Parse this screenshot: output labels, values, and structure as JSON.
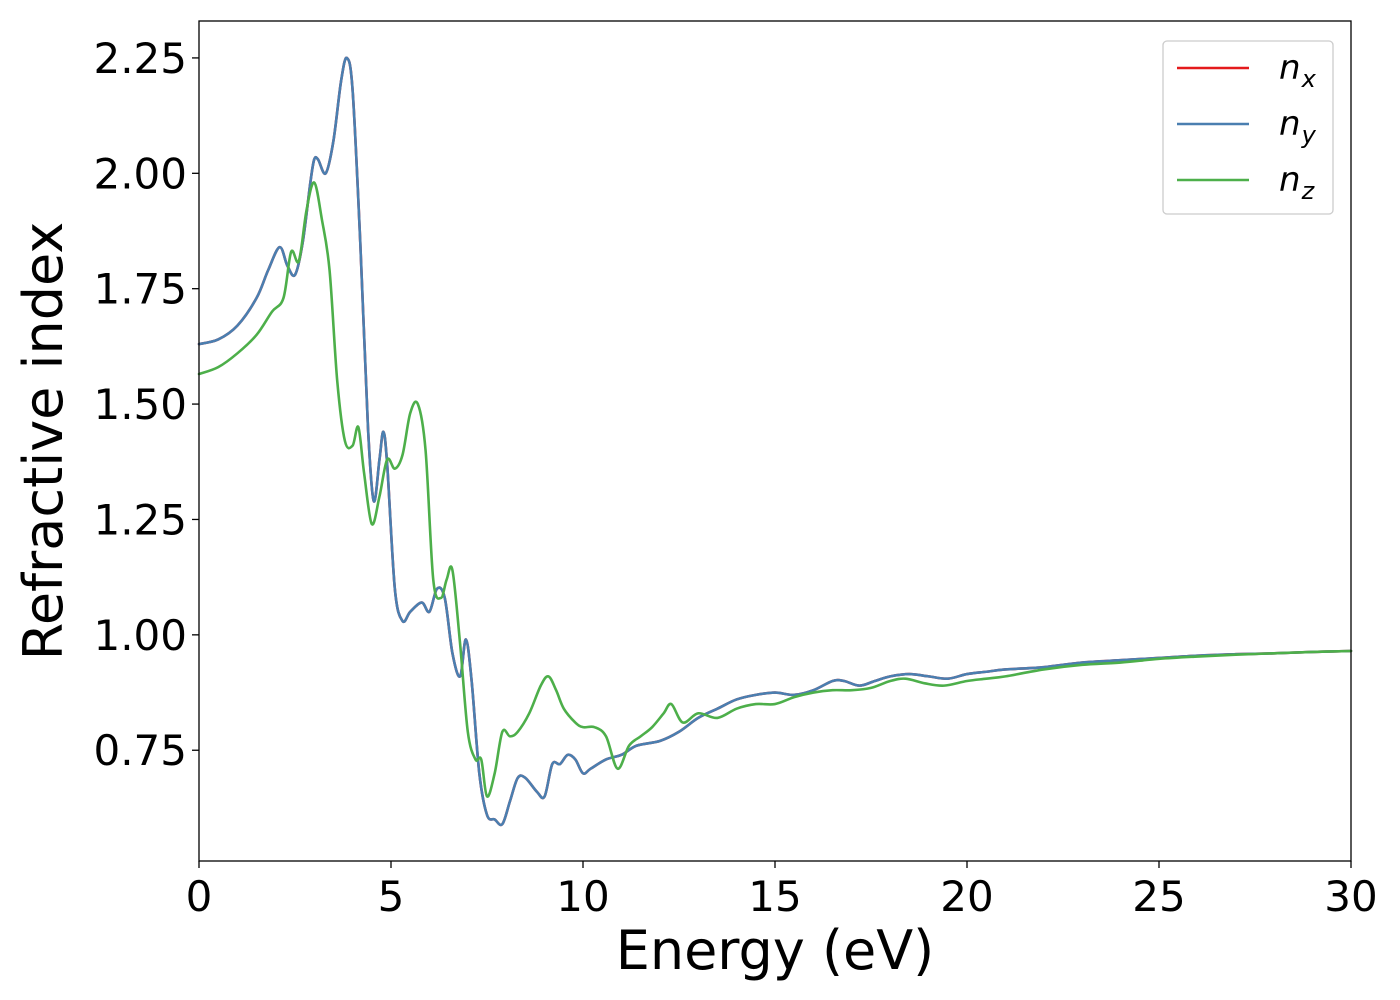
{
  "chart_data": {
    "type": "line",
    "title": "",
    "xlabel": "Energy (eV)",
    "ylabel": "Refractive index",
    "xlim": [
      0,
      30
    ],
    "ylim": [
      0.51,
      2.33
    ],
    "xticks": [
      "0",
      "5",
      "10",
      "15",
      "20",
      "25",
      "30"
    ],
    "xtick_values": [
      0,
      5,
      10,
      15,
      20,
      25,
      30
    ],
    "yticks": [
      "0.75",
      "1.00",
      "1.25",
      "1.50",
      "1.75",
      "2.00",
      "2.25"
    ],
    "ytick_values": [
      0.75,
      1.0,
      1.25,
      1.5,
      1.75,
      2.0,
      2.25
    ],
    "grid": false,
    "legend_position": "top-right",
    "series": [
      {
        "name": "n_x",
        "legend_main": "n",
        "legend_sub": "x",
        "color": "#e41a1c",
        "x": [
          0,
          0.5,
          1.0,
          1.5,
          1.8,
          2.1,
          2.3,
          2.5,
          2.7,
          2.9,
          3.0,
          3.1,
          3.3,
          3.5,
          3.7,
          3.85,
          4.0,
          4.2,
          4.4,
          4.55,
          4.7,
          4.8,
          4.9,
          5.1,
          5.3,
          5.5,
          5.8,
          6.0,
          6.2,
          6.4,
          6.6,
          6.8,
          6.95,
          7.1,
          7.3,
          7.5,
          7.7,
          7.9,
          8.1,
          8.3,
          8.5,
          8.8,
          9.0,
          9.2,
          9.4,
          9.6,
          9.8,
          10.0,
          10.2,
          10.6,
          11.0,
          11.4,
          12.0,
          12.5,
          13.0,
          13.5,
          14.0,
          14.5,
          15.0,
          15.5,
          16.0,
          16.5,
          16.8,
          17.2,
          17.6,
          18.0,
          18.5,
          19.0,
          19.5,
          20.0,
          20.5,
          21.0,
          22.0,
          23.0,
          24.0,
          25.0,
          26.0,
          27.0,
          28.0,
          29.0,
          30.0
        ],
        "values": [
          1.63,
          1.64,
          1.67,
          1.73,
          1.79,
          1.84,
          1.8,
          1.78,
          1.85,
          1.98,
          2.03,
          2.03,
          2.0,
          2.07,
          2.2,
          2.25,
          2.18,
          1.85,
          1.45,
          1.29,
          1.38,
          1.44,
          1.37,
          1.1,
          1.03,
          1.05,
          1.07,
          1.05,
          1.1,
          1.08,
          0.96,
          0.91,
          0.99,
          0.9,
          0.7,
          0.61,
          0.6,
          0.59,
          0.64,
          0.69,
          0.69,
          0.66,
          0.65,
          0.72,
          0.72,
          0.74,
          0.73,
          0.7,
          0.71,
          0.73,
          0.74,
          0.76,
          0.77,
          0.79,
          0.82,
          0.84,
          0.86,
          0.87,
          0.875,
          0.87,
          0.88,
          0.9,
          0.9,
          0.89,
          0.9,
          0.91,
          0.915,
          0.91,
          0.905,
          0.915,
          0.92,
          0.925,
          0.93,
          0.94,
          0.945,
          0.95,
          0.955,
          0.958,
          0.96,
          0.963,
          0.965
        ]
      },
      {
        "name": "n_y",
        "legend_main": "n",
        "legend_sub": "y",
        "color": "#4a7fb0",
        "x": [
          0,
          0.5,
          1.0,
          1.5,
          1.8,
          2.1,
          2.3,
          2.5,
          2.7,
          2.9,
          3.0,
          3.1,
          3.3,
          3.5,
          3.7,
          3.85,
          4.0,
          4.2,
          4.4,
          4.55,
          4.7,
          4.8,
          4.9,
          5.1,
          5.3,
          5.5,
          5.8,
          6.0,
          6.2,
          6.4,
          6.6,
          6.8,
          6.95,
          7.1,
          7.3,
          7.5,
          7.7,
          7.9,
          8.1,
          8.3,
          8.5,
          8.8,
          9.0,
          9.2,
          9.4,
          9.6,
          9.8,
          10.0,
          10.2,
          10.6,
          11.0,
          11.4,
          12.0,
          12.5,
          13.0,
          13.5,
          14.0,
          14.5,
          15.0,
          15.5,
          16.0,
          16.5,
          16.8,
          17.2,
          17.6,
          18.0,
          18.5,
          19.0,
          19.5,
          20.0,
          20.5,
          21.0,
          22.0,
          23.0,
          24.0,
          25.0,
          26.0,
          27.0,
          28.0,
          29.0,
          30.0
        ],
        "values": [
          1.63,
          1.64,
          1.67,
          1.73,
          1.79,
          1.84,
          1.8,
          1.78,
          1.85,
          1.98,
          2.03,
          2.03,
          2.0,
          2.07,
          2.2,
          2.25,
          2.18,
          1.85,
          1.45,
          1.29,
          1.38,
          1.44,
          1.37,
          1.1,
          1.03,
          1.05,
          1.07,
          1.05,
          1.1,
          1.08,
          0.96,
          0.91,
          0.99,
          0.9,
          0.7,
          0.61,
          0.6,
          0.59,
          0.64,
          0.69,
          0.69,
          0.66,
          0.65,
          0.72,
          0.72,
          0.74,
          0.73,
          0.7,
          0.71,
          0.73,
          0.74,
          0.76,
          0.77,
          0.79,
          0.82,
          0.84,
          0.86,
          0.87,
          0.875,
          0.87,
          0.88,
          0.9,
          0.9,
          0.89,
          0.9,
          0.91,
          0.915,
          0.91,
          0.905,
          0.915,
          0.92,
          0.925,
          0.93,
          0.94,
          0.945,
          0.95,
          0.955,
          0.958,
          0.96,
          0.963,
          0.965
        ]
      },
      {
        "name": "n_z",
        "legend_main": "n",
        "legend_sub": "z",
        "color": "#4daf4a",
        "x": [
          0,
          0.5,
          1.0,
          1.5,
          1.9,
          2.2,
          2.4,
          2.6,
          2.8,
          3.0,
          3.2,
          3.4,
          3.6,
          3.8,
          4.0,
          4.15,
          4.3,
          4.5,
          4.7,
          4.9,
          5.1,
          5.3,
          5.5,
          5.7,
          5.9,
          6.1,
          6.3,
          6.45,
          6.6,
          6.8,
          7.0,
          7.2,
          7.35,
          7.5,
          7.7,
          7.9,
          8.1,
          8.3,
          8.6,
          8.9,
          9.1,
          9.3,
          9.5,
          9.8,
          10.0,
          10.3,
          10.6,
          10.9,
          11.2,
          11.5,
          11.8,
          12.1,
          12.3,
          12.6,
          13.0,
          13.5,
          14.0,
          14.5,
          15.0,
          15.5,
          16.0,
          16.5,
          17.0,
          17.5,
          18.0,
          18.4,
          18.9,
          19.4,
          20.0,
          20.5,
          21.0,
          22.0,
          23.0,
          24.0,
          25.0,
          26.0,
          27.0,
          28.0,
          29.0,
          30.0
        ],
        "values": [
          1.565,
          1.58,
          1.61,
          1.65,
          1.7,
          1.73,
          1.83,
          1.81,
          1.92,
          1.98,
          1.9,
          1.79,
          1.55,
          1.42,
          1.41,
          1.45,
          1.35,
          1.24,
          1.3,
          1.38,
          1.36,
          1.39,
          1.48,
          1.5,
          1.4,
          1.12,
          1.08,
          1.12,
          1.14,
          0.98,
          0.79,
          0.73,
          0.73,
          0.65,
          0.7,
          0.79,
          0.78,
          0.79,
          0.83,
          0.89,
          0.91,
          0.88,
          0.84,
          0.81,
          0.8,
          0.8,
          0.78,
          0.71,
          0.76,
          0.78,
          0.8,
          0.83,
          0.85,
          0.81,
          0.83,
          0.82,
          0.84,
          0.85,
          0.85,
          0.865,
          0.875,
          0.88,
          0.88,
          0.885,
          0.9,
          0.905,
          0.895,
          0.89,
          0.9,
          0.905,
          0.91,
          0.925,
          0.935,
          0.94,
          0.948,
          0.953,
          0.957,
          0.96,
          0.963,
          0.965
        ]
      }
    ]
  }
}
